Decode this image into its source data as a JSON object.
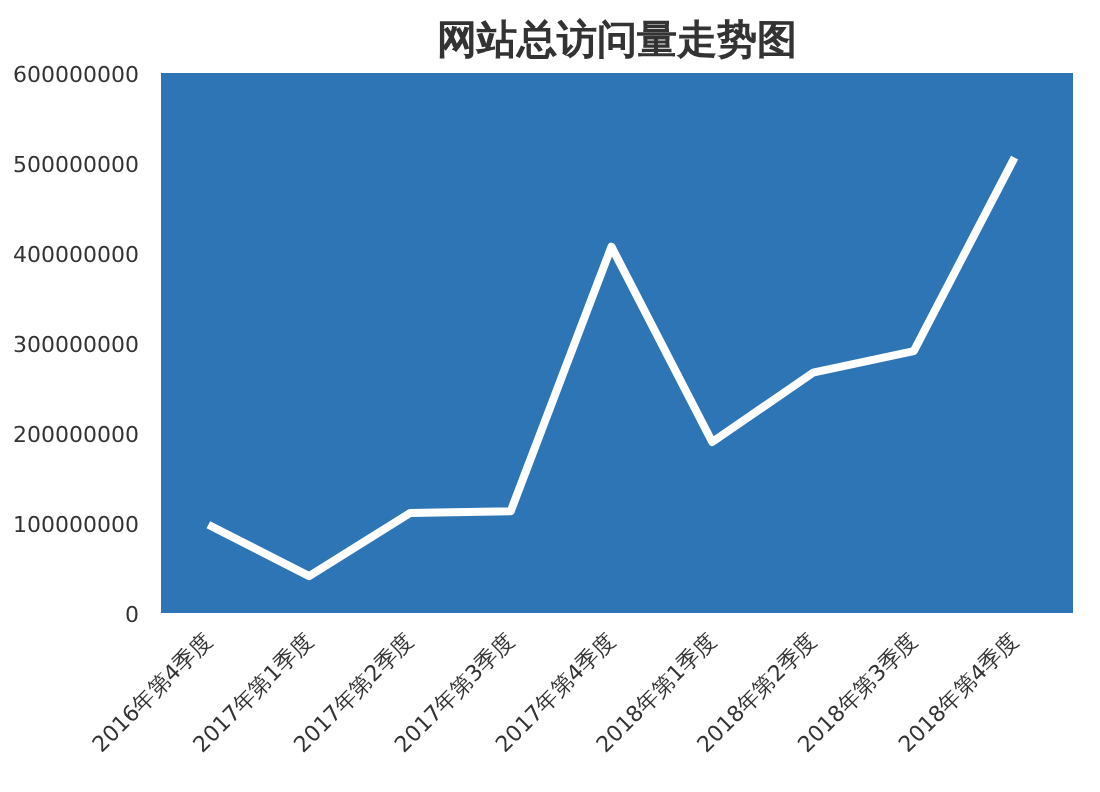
{
  "chart_data": {
    "type": "line",
    "title": "网站总访问量走势图",
    "categories": [
      "2016年第4季度",
      "2017年第1季度",
      "2017年第2季度",
      "2017年第3季度",
      "2017年第4季度",
      "2018年第1季度",
      "2018年第2季度",
      "2018年第3季度",
      "2018年第4季度"
    ],
    "series": [
      {
        "color": "#ffffff",
        "values": [
          98000000,
          41000000,
          111000000,
          113000000,
          407000000,
          190000000,
          267000000,
          291000000,
          506000000
        ]
      }
    ],
    "ylim": [
      0,
      600000000
    ],
    "yticks": [
      0,
      100000000,
      200000000,
      300000000,
      400000000,
      500000000,
      600000000
    ],
    "grid": false,
    "marker": "none",
    "line_style": "solid"
  }
}
